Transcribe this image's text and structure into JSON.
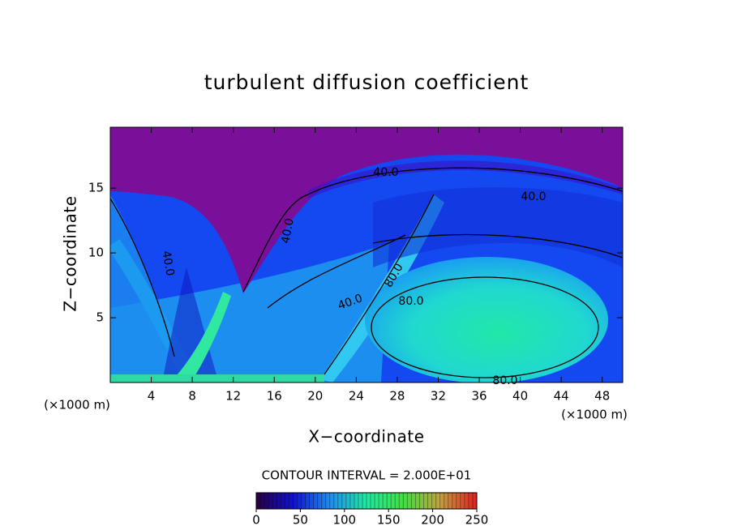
{
  "chart_data": {
    "type": "contour",
    "title": "turbulent diffusion coefficient",
    "x_label": "X−coordinate",
    "y_label": "Z−coordinate",
    "unit_labels": [
      "(×1000 m)",
      "(×1000 m)"
    ],
    "xlim": [
      0,
      50
    ],
    "xticks": [
      4,
      8,
      12,
      16,
      20,
      24,
      28,
      32,
      36,
      40,
      44,
      48
    ],
    "ylim": [
      0,
      19.7
    ],
    "yticks": [
      5,
      10,
      15
    ],
    "contour_labels": [
      "40.0",
      "40.0",
      "40.0",
      "40.0",
      "40.0",
      "80.0",
      "80.0",
      "80.0"
    ],
    "contour_interval": "CONTOUR INTERVAL = 2.000E+01",
    "colorbar": {
      "lim": [
        0,
        250
      ],
      "ticks": [
        0,
        50,
        100,
        150,
        200,
        250
      ],
      "colors": [
        "#2a0040",
        "#1010d0",
        "#1e8cf0",
        "#20e8a0",
        "#40e040",
        "#c0a040",
        "#e02020"
      ]
    }
  }
}
